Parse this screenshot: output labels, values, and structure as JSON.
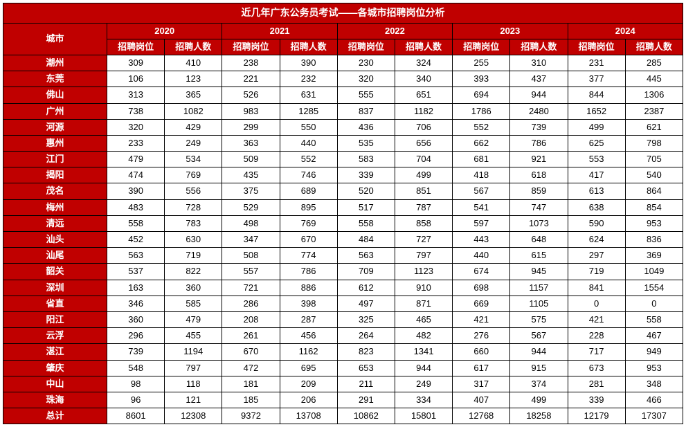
{
  "title": "近几年广东公务员考试——各城市招聘岗位分析",
  "header": {
    "city": "城市",
    "years": [
      "2020",
      "2021",
      "2022",
      "2023",
      "2024"
    ],
    "sub": {
      "positions": "招聘岗位",
      "people": "招聘人数"
    }
  },
  "rows": [
    {
      "city": "潮州",
      "v": [
        309,
        410,
        238,
        390,
        230,
        324,
        255,
        310,
        231,
        285
      ]
    },
    {
      "city": "东莞",
      "v": [
        106,
        123,
        221,
        232,
        320,
        340,
        393,
        437,
        377,
        445
      ]
    },
    {
      "city": "佛山",
      "v": [
        313,
        365,
        526,
        631,
        555,
        651,
        694,
        944,
        844,
        1306
      ]
    },
    {
      "city": "广州",
      "v": [
        738,
        1082,
        983,
        1285,
        837,
        1182,
        1786,
        2480,
        1652,
        2387
      ]
    },
    {
      "city": "河源",
      "v": [
        320,
        429,
        299,
        550,
        436,
        706,
        552,
        739,
        499,
        621
      ]
    },
    {
      "city": "惠州",
      "v": [
        233,
        249,
        363,
        440,
        535,
        656,
        662,
        786,
        625,
        798
      ]
    },
    {
      "city": "江门",
      "v": [
        479,
        534,
        509,
        552,
        583,
        704,
        681,
        921,
        553,
        705
      ]
    },
    {
      "city": "揭阳",
      "v": [
        474,
        769,
        435,
        746,
        339,
        499,
        418,
        618,
        417,
        540
      ]
    },
    {
      "city": "茂名",
      "v": [
        390,
        556,
        375,
        689,
        520,
        851,
        567,
        859,
        613,
        864
      ]
    },
    {
      "city": "梅州",
      "v": [
        483,
        728,
        529,
        895,
        517,
        787,
        541,
        747,
        638,
        854
      ]
    },
    {
      "city": "清远",
      "v": [
        558,
        783,
        498,
        769,
        558,
        858,
        597,
        1073,
        590,
        953
      ]
    },
    {
      "city": "汕头",
      "v": [
        452,
        630,
        347,
        670,
        484,
        727,
        443,
        648,
        624,
        836
      ]
    },
    {
      "city": "汕尾",
      "v": [
        563,
        719,
        508,
        774,
        563,
        797,
        440,
        615,
        297,
        369
      ]
    },
    {
      "city": "韶关",
      "v": [
        537,
        822,
        557,
        786,
        709,
        1123,
        674,
        945,
        719,
        1049
      ]
    },
    {
      "city": "深圳",
      "v": [
        163,
        360,
        721,
        886,
        612,
        910,
        698,
        1157,
        841,
        1554
      ]
    },
    {
      "city": "省直",
      "v": [
        346,
        585,
        286,
        398,
        497,
        871,
        669,
        1105,
        0,
        0
      ]
    },
    {
      "city": "阳江",
      "v": [
        360,
        479,
        208,
        287,
        325,
        465,
        421,
        575,
        421,
        558
      ]
    },
    {
      "city": "云浮",
      "v": [
        296,
        455,
        261,
        456,
        264,
        482,
        276,
        567,
        228,
        467
      ]
    },
    {
      "city": "湛江",
      "v": [
        739,
        1194,
        670,
        1162,
        823,
        1341,
        660,
        944,
        717,
        949
      ]
    },
    {
      "city": "肇庆",
      "v": [
        548,
        797,
        472,
        695,
        653,
        944,
        617,
        915,
        673,
        953
      ]
    },
    {
      "city": "中山",
      "v": [
        98,
        118,
        181,
        209,
        211,
        249,
        317,
        374,
        281,
        348
      ]
    },
    {
      "city": "珠海",
      "v": [
        96,
        121,
        185,
        206,
        291,
        334,
        407,
        499,
        339,
        466
      ]
    },
    {
      "city": "总计",
      "v": [
        8601,
        12308,
        9372,
        13708,
        10862,
        15801,
        12768,
        18258,
        12179,
        17307
      ]
    }
  ],
  "style": {
    "header_bg": "#c00000",
    "header_fg": "#ffffff",
    "cell_bg": "#ffffff",
    "cell_fg": "#000000",
    "border_color": "#000000",
    "font_family": "Microsoft YaHei",
    "title_fontsize": 14,
    "cell_fontsize": 13
  }
}
